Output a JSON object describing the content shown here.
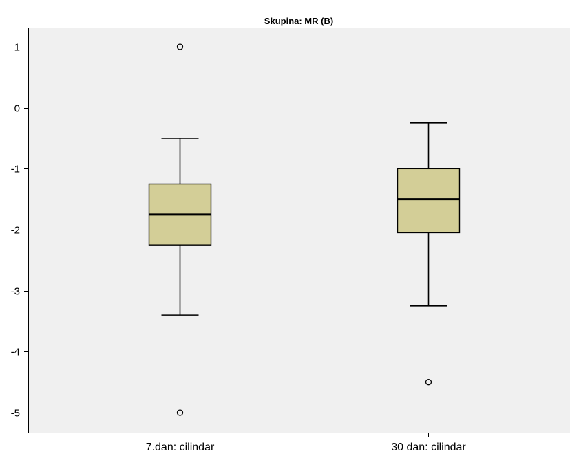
{
  "chart_data": {
    "type": "boxplot",
    "title": "Skupina: MR (B)",
    "xlabel": "",
    "ylabel": "",
    "ylim": [
      -5.3,
      1.3
    ],
    "yticks": [
      1,
      0,
      -1,
      -2,
      -3,
      -4,
      -5
    ],
    "ytick_labels": [
      "1",
      "0",
      "-1",
      "-2",
      "-3",
      "-4",
      "-5"
    ],
    "categories": [
      "7.dan: cilindar",
      "30 dan: cilindar"
    ],
    "boxes": [
      {
        "category": "7.dan: cilindar",
        "whisker_low": -3.4,
        "q1": -2.25,
        "median": -1.75,
        "q3": -1.25,
        "whisker_high": -0.5,
        "outliers": [
          1,
          -5
        ]
      },
      {
        "category": "30 dan: cilindar",
        "whisker_low": -3.25,
        "q1": -2.05,
        "median": -1.5,
        "q3": -1.0,
        "whisker_high": -0.25,
        "outliers": [
          -4.5
        ]
      }
    ],
    "grid": false,
    "colors": {
      "plot_background": "#f0f0f0",
      "box_fill": "#d3ce97",
      "box_stroke": "#000000"
    }
  }
}
